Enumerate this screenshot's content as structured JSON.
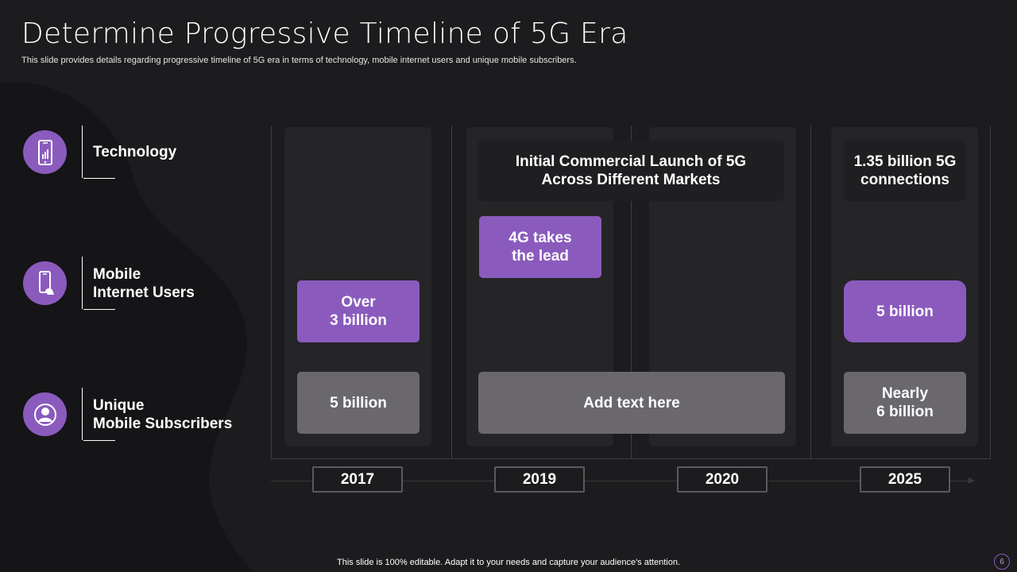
{
  "header": {
    "title": "Determine Progressive Timeline of 5G Era",
    "subtitle": "This slide provides details regarding progressive timeline of 5G era in terms of technology, mobile internet users and unique mobile subscribers."
  },
  "rows": [
    {
      "label": "Technology",
      "icon": "mobile-signal-icon"
    },
    {
      "label_line1": "Mobile",
      "label_line2": "Internet Users",
      "icon": "mobile-hand-icon"
    },
    {
      "label_line1": "Unique",
      "label_line2": "Mobile Subscribers",
      "icon": "user-icon"
    }
  ],
  "years": [
    "2017",
    "2019",
    "2020",
    "2025"
  ],
  "cards": {
    "tech_2019_line1": "Initial Commercial Launch of 5G",
    "tech_2019_line2": "Across Different Markets",
    "tech_2025_line1": "1.35 billion 5G",
    "tech_2025_line2": "connections",
    "users_2017_line1": "Over",
    "users_2017_line2": "3 billion",
    "users_2019_line1": "4G takes",
    "users_2019_line2": "the lead",
    "users_2025": "5 billion",
    "subs_2017": "5 billion",
    "subs_2019": "Add text here",
    "subs_2025_line1": "Nearly",
    "subs_2025_line2": "6 billion"
  },
  "footer": "This slide is 100% editable. Adapt it to your needs and capture your audience's attention.",
  "page_number": "6",
  "colors": {
    "accent": "#8a5bbd",
    "card_grey": "#6a686d",
    "background": "#1c1b1d",
    "column": "#252427"
  }
}
